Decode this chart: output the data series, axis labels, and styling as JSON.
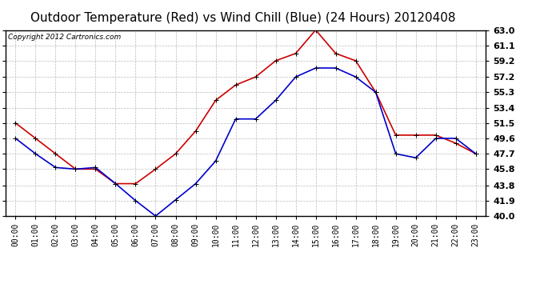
{
  "title": "Outdoor Temperature (Red) vs Wind Chill (Blue) (24 Hours) 20120408",
  "copyright": "Copyright 2012 Cartronics.com",
  "hours": [
    "00:00",
    "01:00",
    "02:00",
    "03:00",
    "04:00",
    "05:00",
    "06:00",
    "07:00",
    "08:00",
    "09:00",
    "10:00",
    "11:00",
    "12:00",
    "13:00",
    "14:00",
    "15:00",
    "16:00",
    "17:00",
    "18:00",
    "19:00",
    "20:00",
    "21:00",
    "22:00",
    "23:00"
  ],
  "red_temp": [
    51.5,
    49.6,
    47.7,
    45.8,
    45.8,
    44.0,
    44.0,
    45.8,
    47.7,
    50.5,
    54.3,
    56.2,
    57.2,
    59.2,
    60.1,
    63.0,
    60.1,
    59.2,
    55.3,
    50.0,
    50.0,
    50.0,
    49.0,
    47.7
  ],
  "blue_wc": [
    49.6,
    47.7,
    46.0,
    45.8,
    46.0,
    44.0,
    41.9,
    40.0,
    42.0,
    44.0,
    46.8,
    52.0,
    52.0,
    54.3,
    57.2,
    58.3,
    58.3,
    57.2,
    55.3,
    47.7,
    47.2,
    49.6,
    49.6,
    47.7
  ],
  "ylim_min": 40.0,
  "ylim_max": 63.0,
  "yticks": [
    40.0,
    41.9,
    43.8,
    45.8,
    47.7,
    49.6,
    51.5,
    53.4,
    55.3,
    57.2,
    59.2,
    61.1,
    63.0
  ],
  "red_color": "#cc0000",
  "blue_color": "#0000cc",
  "bg_color": "#ffffff",
  "grid_color": "#bbbbbb",
  "title_fontsize": 11,
  "copyright_fontsize": 6.5,
  "tick_labelsize": 8,
  "xtick_labelsize": 7
}
